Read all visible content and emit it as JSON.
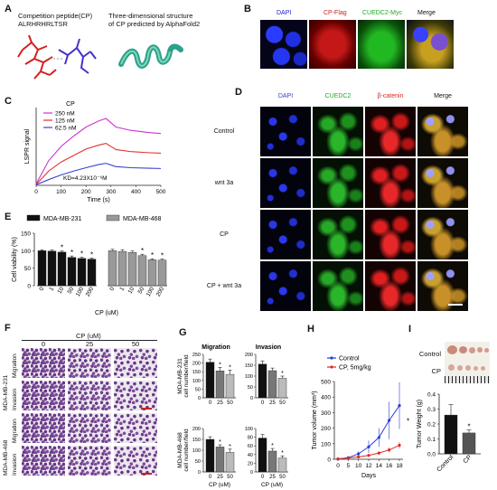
{
  "panel_a": {
    "letter": "A",
    "peptide_title": "Competition peptide(CP)",
    "peptide_seq": "ALRHRHRLTSR",
    "structure_title": "Three-dimensional structure",
    "structure_sub": "of CP predicted by AlphaFold2"
  },
  "panel_b": {
    "letter": "B",
    "cols": [
      "DAPI",
      "CP-Flag",
      "CUEDC2-Myc",
      "Merge"
    ],
    "col_colors": [
      "#2222cc",
      "#cc2222",
      "#22aa22",
      "#111111"
    ]
  },
  "panel_c": {
    "letter": "C",
    "legend_title": "CP",
    "kd_text": "KD=4.23X10⁻⁶M",
    "chart_data": {
      "type": "line",
      "xlabel": "Time (s)",
      "ylabel": "LSPR signal",
      "xlim": [
        0,
        500
      ],
      "xticks": [
        0,
        100,
        200,
        300,
        400,
        500
      ],
      "series": [
        {
          "name": "250 nM",
          "color": "#cc33cc",
          "x": [
            0,
            50,
            100,
            150,
            200,
            250,
            280,
            320,
            380,
            450,
            500
          ],
          "y": [
            5,
            95,
            150,
            190,
            225,
            248,
            258,
            225,
            212,
            204,
            200
          ]
        },
        {
          "name": "125 nM",
          "color": "#e23030",
          "x": [
            0,
            50,
            100,
            150,
            200,
            250,
            280,
            320,
            380,
            450,
            500
          ],
          "y": [
            3,
            55,
            90,
            115,
            140,
            155,
            162,
            138,
            130,
            126,
            124
          ]
        },
        {
          "name": "62.5 nM",
          "color": "#3344cc",
          "x": [
            0,
            50,
            100,
            150,
            200,
            250,
            280,
            320,
            380,
            450,
            500
          ],
          "y": [
            2,
            22,
            40,
            55,
            68,
            80,
            85,
            72,
            68,
            66,
            65
          ]
        }
      ]
    }
  },
  "panel_d": {
    "letter": "D",
    "cols": [
      "DAPI",
      "CUEDC2",
      "β-catenin",
      "Merge"
    ],
    "col_colors": [
      "#3344cc",
      "#22aa22",
      "#dd2222",
      "#111111"
    ],
    "rows": [
      "Control",
      "wnt 3a",
      "CP",
      "CP + wnt  3a"
    ]
  },
  "panel_e": {
    "letter": "E",
    "legend": [
      "MDA-MB-231",
      "MDA-MB-468"
    ],
    "chart_data": {
      "type": "bar",
      "ylabel": "Cell viability (%)",
      "xlabel": "CP (uM)",
      "ylim": [
        0,
        150
      ],
      "yticks": [
        0,
        50,
        100,
        150
      ],
      "categories": [
        "0",
        "1",
        "10",
        "50",
        "100",
        "200"
      ],
      "series": [
        {
          "name": "MDA-MB-231",
          "color": "#111111",
          "values": [
            100,
            99,
            96,
            81,
            78,
            76
          ],
          "errors": [
            3,
            3,
            3,
            4,
            3,
            3
          ],
          "sig": [
            "",
            "",
            "*",
            "*",
            "*",
            "*"
          ]
        },
        {
          "name": "MDA-MB-468",
          "color": "#999999",
          "values": [
            100,
            98,
            95,
            86,
            74,
            73
          ],
          "errors": [
            4,
            5,
            4,
            4,
            3,
            3
          ],
          "sig": [
            "",
            "",
            "",
            "*",
            "*",
            "*"
          ]
        }
      ]
    }
  },
  "panel_f": {
    "letter": "F",
    "header": "CP (uM)",
    "cols": [
      "0",
      "25",
      "50"
    ],
    "groups": [
      "MDA-MB-231",
      "MDA-MB-468"
    ],
    "assays": [
      "Migration",
      "Invasion"
    ]
  },
  "panel_g": {
    "letter": "G",
    "titles": [
      "Migration",
      "Invasion"
    ],
    "row_labels": [
      "MDA-MB-231",
      "MDA-MB-468"
    ],
    "ylabel": "cell number/field",
    "xlabel": "CP (uM)",
    "chart_data": [
      {
        "type": "bar",
        "title": "Migration",
        "group": "MDA-MB-231",
        "categories": [
          "0",
          "25",
          "50"
        ],
        "values": [
          205,
          155,
          135
        ],
        "errors": [
          18,
          20,
          25
        ],
        "ylim": [
          0,
          250
        ],
        "yticks": [
          0,
          50,
          100,
          150,
          200,
          250
        ],
        "sig": [
          "",
          "*",
          "*"
        ],
        "colors": [
          "#111111",
          "#777777",
          "#bbbbbb"
        ]
      },
      {
        "type": "bar",
        "title": "Invasion",
        "group": "MDA-MB-231",
        "categories": [
          "0",
          "25",
          "50"
        ],
        "values": [
          155,
          125,
          90
        ],
        "errors": [
          15,
          12,
          10
        ],
        "ylim": [
          0,
          200
        ],
        "yticks": [
          0,
          50,
          100,
          150,
          200
        ],
        "sig": [
          "",
          "",
          "*"
        ],
        "colors": [
          "#111111",
          "#777777",
          "#bbbbbb"
        ]
      },
      {
        "type": "bar",
        "title": "Migration",
        "group": "MDA-MB-468",
        "categories": [
          "0",
          "25",
          "50"
        ],
        "values": [
          150,
          115,
          90
        ],
        "errors": [
          12,
          10,
          15
        ],
        "ylim": [
          0,
          200
        ],
        "yticks": [
          0,
          50,
          100,
          150,
          200
        ],
        "sig": [
          "",
          "*",
          "*"
        ],
        "colors": [
          "#111111",
          "#777777",
          "#bbbbbb"
        ]
      },
      {
        "type": "bar",
        "title": "Invasion",
        "group": "MDA-MB-468",
        "categories": [
          "0",
          "25",
          "50"
        ],
        "values": [
          78,
          48,
          32
        ],
        "errors": [
          8,
          6,
          5
        ],
        "ylim": [
          0,
          100
        ],
        "yticks": [
          0,
          20,
          40,
          60,
          80,
          100
        ],
        "sig": [
          "",
          "*",
          "*"
        ],
        "colors": [
          "#111111",
          "#777777",
          "#bbbbbb"
        ]
      }
    ]
  },
  "panel_h": {
    "letter": "H",
    "legend": [
      "Control",
      "CP, 5mg/kg"
    ],
    "chart_data": {
      "type": "line",
      "xlabel": "Days",
      "ylabel": "Tumor volume (mm³)",
      "ylim": [
        0,
        500
      ],
      "yticks": [
        0,
        100,
        200,
        300,
        400,
        500
      ],
      "xticks": [
        0,
        5,
        10,
        12,
        14,
        16,
        18
      ],
      "series": [
        {
          "name": "Control",
          "color": "#2a3bd8",
          "x": [
            0,
            5,
            10,
            12,
            14,
            16,
            18
          ],
          "y": [
            2,
            10,
            35,
            80,
            140,
            250,
            345
          ],
          "errors": [
            1,
            5,
            15,
            40,
            60,
            120,
            150
          ]
        },
        {
          "name": "CP, 5mg/kg",
          "color": "#e02828",
          "x": [
            0,
            5,
            10,
            12,
            14,
            16,
            18
          ],
          "y": [
            2,
            8,
            15,
            25,
            40,
            60,
            90
          ],
          "errors": [
            1,
            3,
            5,
            8,
            10,
            15,
            20
          ]
        }
      ],
      "sig_label": "*"
    }
  },
  "panel_i": {
    "letter": "I",
    "rows": [
      "Control",
      "CP"
    ],
    "chart_data": {
      "type": "bar",
      "ylabel": "Tumor Weight (g)",
      "categories": [
        "Control",
        "CP"
      ],
      "values": [
        0.26,
        0.14
      ],
      "errors": [
        0.07,
        0.02
      ],
      "ylim": [
        0,
        0.4
      ],
      "yticks": [
        0.0,
        0.1,
        0.2,
        0.3,
        0.4
      ],
      "sig": [
        "",
        "*"
      ],
      "colors": [
        "#111111",
        "#555555"
      ]
    }
  }
}
